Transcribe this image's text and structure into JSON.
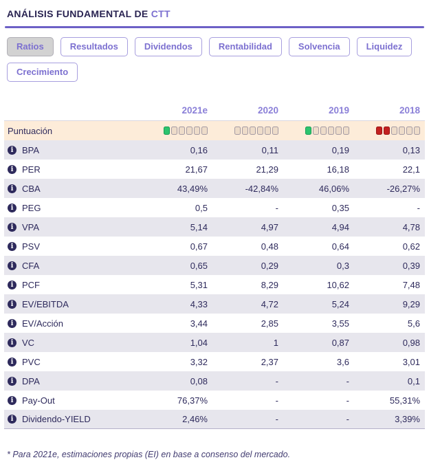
{
  "header": {
    "title_prefix": "ANÁLISIS FUNDAMENTAL DE ",
    "ticker": "CTT"
  },
  "tabs": [
    {
      "label": "Ratios",
      "active": true
    },
    {
      "label": "Resultados",
      "active": false
    },
    {
      "label": "Dividendos",
      "active": false
    },
    {
      "label": "Rentabilidad",
      "active": false
    },
    {
      "label": "Solvencia",
      "active": false
    },
    {
      "label": "Liquidez",
      "active": false
    },
    {
      "label": "Crecimiento",
      "active": false
    }
  ],
  "table": {
    "year_headers": [
      "2021e",
      "2020",
      "2019",
      "2018"
    ],
    "score_row": {
      "label": "Puntuación",
      "total_squares": 6,
      "scores": [
        {
          "year": "2021e",
          "filled": 1,
          "color": "green"
        },
        {
          "year": "2020",
          "filled": 0,
          "color": "none"
        },
        {
          "year": "2019",
          "filled": 1,
          "color": "green"
        },
        {
          "year": "2018",
          "filled": 2,
          "color": "red"
        }
      ]
    },
    "rows": [
      {
        "label": "BPA",
        "values": [
          "0,16",
          "0,11",
          "0,19",
          "0,13"
        ]
      },
      {
        "label": "PER",
        "values": [
          "21,67",
          "21,29",
          "16,18",
          "22,1"
        ]
      },
      {
        "label": "CBA",
        "values": [
          "43,49%",
          "-42,84%",
          "46,06%",
          "-26,27%"
        ]
      },
      {
        "label": "PEG",
        "values": [
          "0,5",
          "-",
          "0,35",
          "-"
        ]
      },
      {
        "label": "VPA",
        "values": [
          "5,14",
          "4,97",
          "4,94",
          "4,78"
        ]
      },
      {
        "label": "PSV",
        "values": [
          "0,67",
          "0,48",
          "0,64",
          "0,62"
        ]
      },
      {
        "label": "CFA",
        "values": [
          "0,65",
          "0,29",
          "0,3",
          "0,39"
        ]
      },
      {
        "label": "PCF",
        "values": [
          "5,31",
          "8,29",
          "10,62",
          "7,48"
        ]
      },
      {
        "label": "EV/EBITDA",
        "values": [
          "4,33",
          "4,72",
          "5,24",
          "9,29"
        ]
      },
      {
        "label": "EV/Acción",
        "values": [
          "3,44",
          "2,85",
          "3,55",
          "5,6"
        ]
      },
      {
        "label": "VC",
        "values": [
          "1,04",
          "1",
          "0,87",
          "0,98"
        ]
      },
      {
        "label": "PVC",
        "values": [
          "3,32",
          "2,37",
          "3,6",
          "3,01"
        ]
      },
      {
        "label": "DPA",
        "values": [
          "0,08",
          "-",
          "-",
          "0,1"
        ]
      },
      {
        "label": "Pay-Out",
        "values": [
          "76,37%",
          "-",
          "-",
          "55,31%"
        ]
      },
      {
        "label": "Dividendo-YIELD",
        "values": [
          "2,46%",
          "-",
          "-",
          "3,39%"
        ]
      }
    ]
  },
  "footnote": "* Para 2021e, estimaciones propias (EI) en base a consenso del mercado.",
  "colors": {
    "accent_purple": "#7c70d0",
    "title_navy": "#292351",
    "underline_purple": "#6c60c6",
    "year_header_purple": "#8b80d8",
    "row_alt_gray": "#e7e6ed",
    "score_row_peach": "#fdecd9",
    "square_empty": "#eedcc9",
    "square_green": "#2dc46e",
    "square_red": "#c32120",
    "active_tab_gray": "#d2d2d2"
  }
}
